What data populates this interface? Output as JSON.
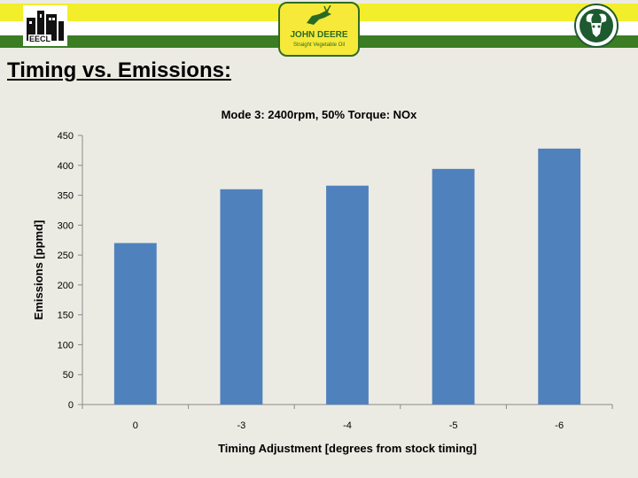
{
  "header": {
    "left_logo_text": "EECL",
    "center_logo_line1": "JOHN DEERE",
    "center_logo_line2": "Straight Vegetable Oil"
  },
  "slide": {
    "title": "Timing vs. Emissions:"
  },
  "colors": {
    "bar": "#4f81bd",
    "header_yellow": "#f2ee2c",
    "header_green": "#3b7d23",
    "background": "#ecebe3"
  },
  "chart_data": {
    "type": "bar",
    "title": "Mode 3: 2400rpm, 50% Torque:  NOx",
    "xlabel": "Timing  Adjustment [degrees from stock timing]",
    "ylabel": "Emissions [ppmd]",
    "categories": [
      "0",
      "-3",
      "-4",
      "-5",
      "-6"
    ],
    "values": [
      270,
      360,
      366,
      394,
      428
    ],
    "ylim": [
      0,
      450
    ],
    "yticks": [
      0,
      50,
      100,
      150,
      200,
      250,
      300,
      350,
      400,
      450
    ],
    "grid": false,
    "legend": "none"
  }
}
